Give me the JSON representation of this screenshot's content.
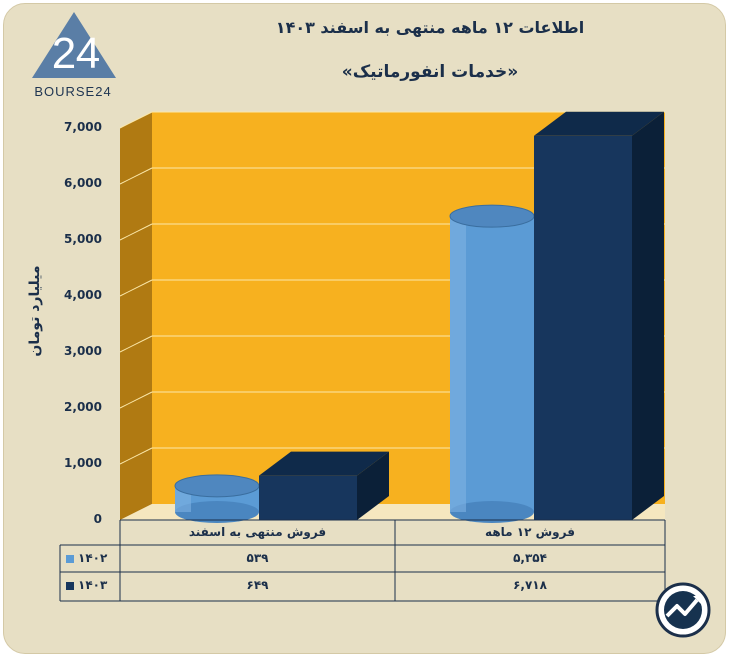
{
  "brand": {
    "logo_text": "BOURSE24"
  },
  "chart_data": {
    "type": "bar",
    "title": "اطلاعات ۱۲ ماهه منتهی به اسفند ۱۴۰۳",
    "subtitle": "«خدمات انفورماتیک»",
    "ylabel": "میلیارد تومان",
    "ylim": [
      0,
      7000
    ],
    "yticks": [
      "0",
      "1,000",
      "2,000",
      "3,000",
      "4,000",
      "5,000",
      "6,000",
      "7,000"
    ],
    "categories": [
      "فروش منتهی به  اسفند",
      "فروش ۱۲ ماهه"
    ],
    "series": [
      {
        "name": "۱۴۰۲",
        "values": [
          539,
          5354
        ],
        "labels": [
          "۵۳۹",
          "۵,۳۵۴"
        ],
        "color": "#5b9bd5"
      },
      {
        "name": "۱۴۰۳",
        "values": [
          649,
          6718
        ],
        "labels": [
          "۶۴۹",
          "۶,۷۱۸"
        ],
        "color": "#17365d"
      }
    ],
    "colors": {
      "wall": "#f7b11f",
      "wall_side": "#b07a12",
      "floor": "#f5e7bf",
      "grid": "#fbe7a8"
    }
  }
}
